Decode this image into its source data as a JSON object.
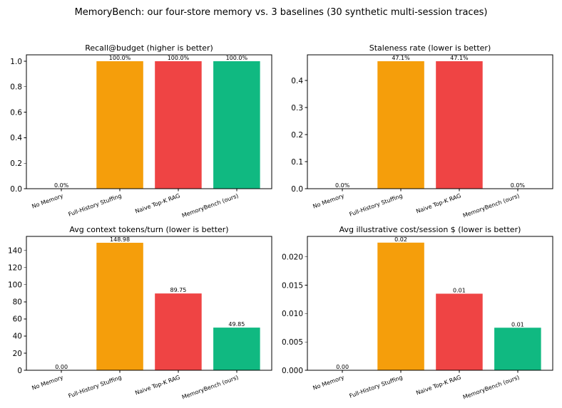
{
  "figure": {
    "title": "MemoryBench: our four-store memory vs. 3 baselines (30 synthetic multi-session traces)"
  },
  "colors": {
    "no_memory": "#9ca3af",
    "full_history": "#f59e0b",
    "naive_rag": "#ef4444",
    "memorybench": "#10b981"
  },
  "chart_data": [
    {
      "type": "bar",
      "title": "Recall@budget (higher is better)",
      "xlabel": "",
      "ylabel": "",
      "categories": [
        "No Memory",
        "Full-History Stuffing",
        "Naive Top-K RAG",
        "MemoryBench (ours)"
      ],
      "values": [
        0.0,
        1.0,
        1.0,
        1.0
      ],
      "data_labels": [
        "0.0%",
        "100.0%",
        "100.0%",
        "100.0%"
      ],
      "bar_colors": [
        "#9ca3af",
        "#f59e0b",
        "#ef4444",
        "#10b981"
      ],
      "ylim": [
        0,
        1.05
      ],
      "yticks": [
        0,
        0.2,
        0.4,
        0.6,
        0.8,
        1.0
      ],
      "ytick_labels": [
        "0.0",
        "0.2",
        "0.4",
        "0.6",
        "0.8",
        "1.0"
      ],
      "grid": false
    },
    {
      "type": "bar",
      "title": "Staleness rate (lower is better)",
      "xlabel": "",
      "ylabel": "",
      "categories": [
        "No Memory",
        "Full-History Stuffing",
        "Naive Top-K RAG",
        "MemoryBench (ours)"
      ],
      "values": [
        0.0,
        0.471,
        0.471,
        0.0
      ],
      "data_labels": [
        "0.0%",
        "47.1%",
        "47.1%",
        "0.0%"
      ],
      "bar_colors": [
        "#9ca3af",
        "#f59e0b",
        "#ef4444",
        "#10b981"
      ],
      "ylim": [
        0,
        0.4946
      ],
      "yticks": [
        0,
        0.1,
        0.2,
        0.3,
        0.4
      ],
      "ytick_labels": [
        "0.0",
        "0.1",
        "0.2",
        "0.3",
        "0.4"
      ],
      "grid": false
    },
    {
      "type": "bar",
      "title": "Avg context tokens/turn (lower is better)",
      "xlabel": "",
      "ylabel": "",
      "categories": [
        "No Memory",
        "Full-History Stuffing",
        "Naive Top-K RAG",
        "MemoryBench (ours)"
      ],
      "values": [
        0.0,
        148.98,
        89.75,
        49.85
      ],
      "data_labels": [
        "0.00",
        "148.98",
        "89.75",
        "49.85"
      ],
      "bar_colors": [
        "#9ca3af",
        "#f59e0b",
        "#ef4444",
        "#10b981"
      ],
      "ylim": [
        0,
        156.43
      ],
      "yticks": [
        0,
        20,
        40,
        60,
        80,
        100,
        120,
        140
      ],
      "ytick_labels": [
        "0",
        "20",
        "40",
        "60",
        "80",
        "100",
        "120",
        "140"
      ],
      "grid": false
    },
    {
      "type": "bar",
      "title": "Avg illustrative cost/session $ (lower is better)",
      "xlabel": "",
      "ylabel": "",
      "categories": [
        "No Memory",
        "Full-History Stuffing",
        "Naive Top-K RAG",
        "MemoryBench (ours)"
      ],
      "values": [
        0.0,
        0.0225,
        0.0135,
        0.0075
      ],
      "data_labels": [
        "0.00",
        "0.02",
        "0.01",
        "0.01"
      ],
      "bar_colors": [
        "#9ca3af",
        "#f59e0b",
        "#ef4444",
        "#10b981"
      ],
      "ylim": [
        0,
        0.0236
      ],
      "yticks": [
        0,
        0.005,
        0.01,
        0.015,
        0.02
      ],
      "ytick_labels": [
        "0.000",
        "0.005",
        "0.010",
        "0.015",
        "0.020"
      ],
      "grid": false
    }
  ]
}
